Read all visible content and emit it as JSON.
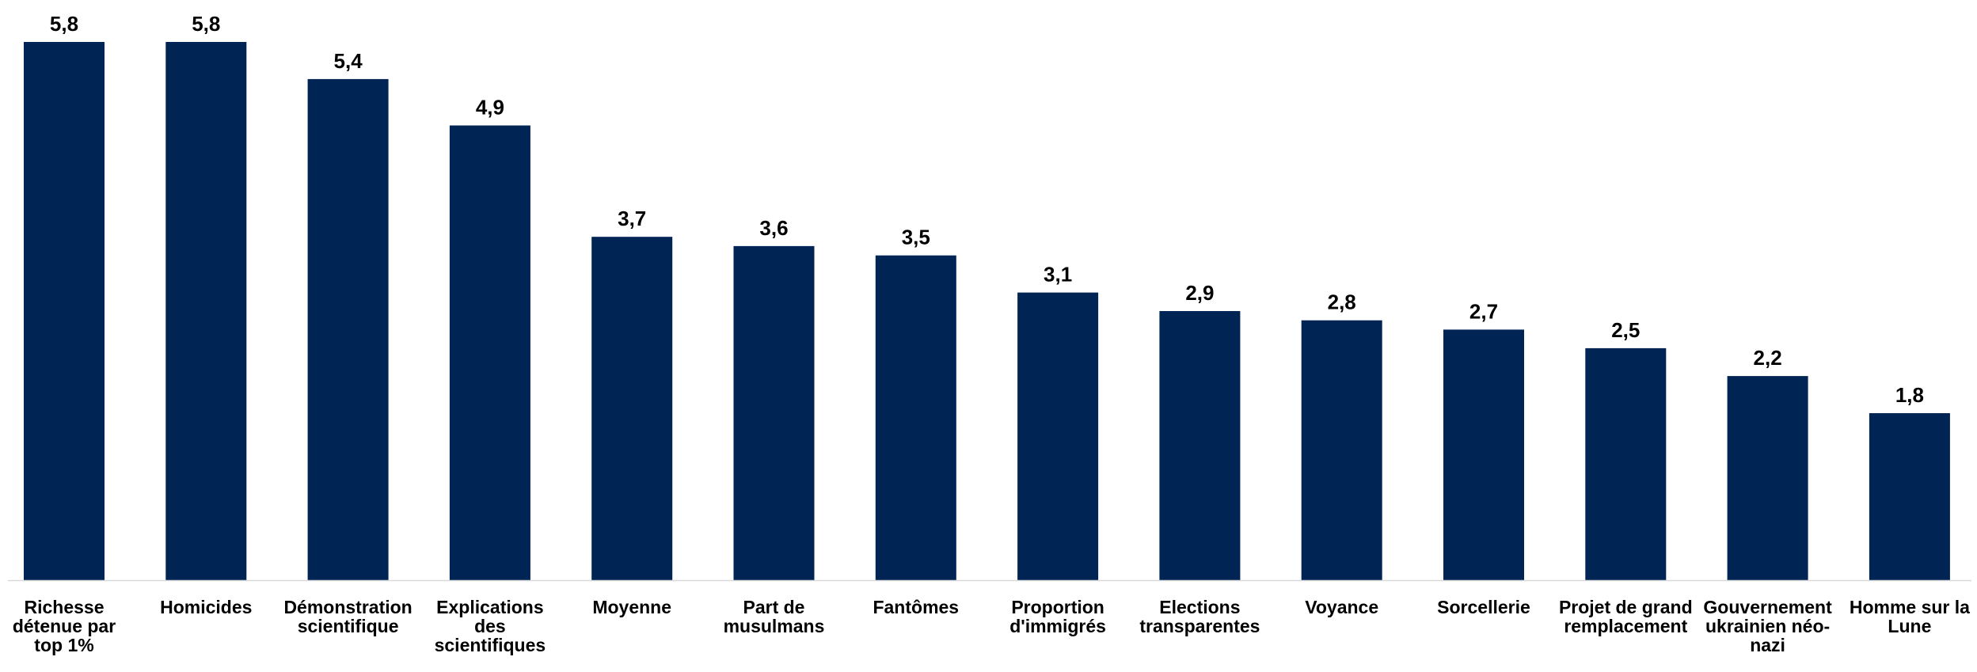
{
  "chart_data": {
    "type": "bar",
    "title": "",
    "xlabel": "",
    "ylabel": "",
    "ylim": [
      0,
      5.8
    ],
    "grid": false,
    "legend": "none",
    "bar_color": "#002454",
    "axis_color": "#d9d9d9",
    "categories": [
      "Richesse détenue par top 1%",
      "Homicides",
      "Démonstration scientifique",
      "Explications des scientifiques",
      "Moyenne",
      "Part de musulmans",
      "Fantômes",
      "Proportion d'immigrés",
      "Elections transparentes",
      "Voyance",
      "Sorcellerie",
      "Projet de grand remplacement",
      "Gouvernement ukrainien néo-nazi",
      "Homme sur la Lune"
    ],
    "category_label_lines": [
      [
        "Richesse",
        "détenue par",
        "top 1%"
      ],
      [
        "Homicides"
      ],
      [
        "Démonstration",
        "scientifique"
      ],
      [
        "Explications",
        "des",
        "scientifiques"
      ],
      [
        "Moyenne"
      ],
      [
        "Part de",
        "musulmans"
      ],
      [
        "Fantômes"
      ],
      [
        "Proportion",
        "d'immigrés"
      ],
      [
        "Elections",
        "transparentes"
      ],
      [
        "Voyance"
      ],
      [
        "Sorcellerie"
      ],
      [
        "Projet de grand",
        "remplacement"
      ],
      [
        "Gouvernement",
        "ukrainien néo-",
        "nazi"
      ],
      [
        "Homme sur la",
        "Lune"
      ]
    ],
    "values": [
      5.8,
      5.8,
      5.4,
      4.9,
      3.7,
      3.6,
      3.5,
      3.1,
      2.9,
      2.8,
      2.7,
      2.5,
      2.2,
      1.8
    ],
    "value_labels": [
      "5,8",
      "5,8",
      "5,4",
      "4,9",
      "3,7",
      "3,6",
      "3,5",
      "3,1",
      "2,9",
      "2,8",
      "2,7",
      "2,5",
      "2,2",
      "1,8"
    ]
  }
}
